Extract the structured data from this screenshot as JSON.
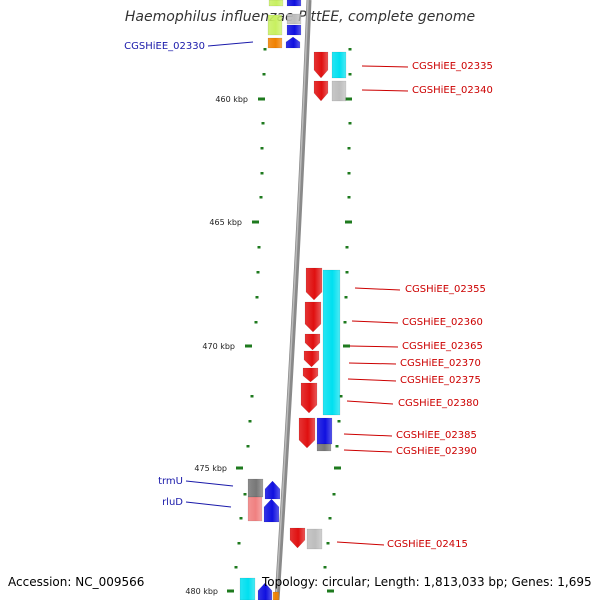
{
  "title": "Haemophilus influenzae PittEE, complete genome",
  "footer": {
    "accession": "Accession: NC_009566",
    "stats": "Topology: circular; Length: 1,813,033 bp; Genes: 1,695"
  },
  "colors": {
    "forward_label": "#1a1aaa",
    "reverse_label": "#cc0000",
    "tick": "#1e7a1e",
    "backbone": "#8a8a8a",
    "red_gene": "#e01010",
    "cyan_gene": "#00e0f0",
    "blue_gene": "#1010e0",
    "gray_gene": "#777777",
    "orange_gene": "#f08000",
    "light_green_gene": "#c8f060"
  },
  "scale": {
    "ticks": [
      {
        "label": "460 kbp"
      },
      {
        "label": "465 kbp"
      },
      {
        "label": "470 kbp"
      },
      {
        "label": "475 kbp"
      },
      {
        "label": "480 kbp"
      }
    ]
  },
  "genes": {
    "forward": [
      {
        "label": "CGSHiEE_02330"
      },
      {
        "label": "trmU"
      },
      {
        "label": "rluD"
      }
    ],
    "reverse": [
      {
        "label": "CGSHiEE_02335"
      },
      {
        "label": "CGSHiEE_02340"
      },
      {
        "label": "CGSHiEE_02355"
      },
      {
        "label": "CGSHiEE_02360"
      },
      {
        "label": "CGSHiEE_02365"
      },
      {
        "label": "CGSHiEE_02370"
      },
      {
        "label": "CGSHiEE_02375"
      },
      {
        "label": "CGSHiEE_02380"
      },
      {
        "label": "CGSHiEE_02385"
      },
      {
        "label": "CGSHiEE_02390"
      },
      {
        "label": "CGSHiEE_02415"
      }
    ]
  }
}
